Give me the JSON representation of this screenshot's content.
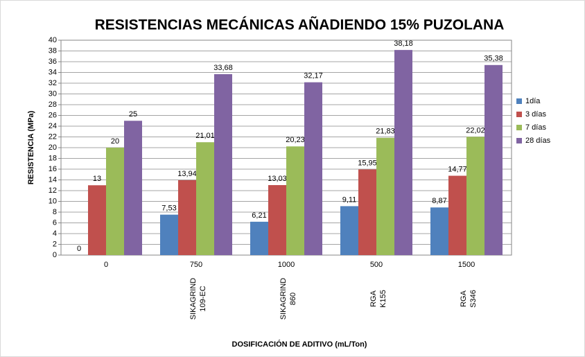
{
  "chart_data": {
    "type": "bar",
    "title": "RESISTENCIAS MECÁNICAS AÑADIENDO 15% PUZOLANA",
    "x_label": "DOSIFICACIÓN DE ADITIVO   (mL/Ton)",
    "y_label": "RESISTENCIA (MPa)",
    "categories": [
      "0",
      "750",
      "1000",
      "500",
      "1500"
    ],
    "sublabels": [
      null,
      [
        "SIKAGRIND",
        "109-EC"
      ],
      [
        "SIKAGRIND",
        "860"
      ],
      [
        "RGA",
        "K155"
      ],
      [
        "RGA",
        "S346"
      ]
    ],
    "series": [
      {
        "name": "1día",
        "color": "#4f81bd",
        "values": [
          0,
          7.53,
          6.21,
          9.11,
          8.87
        ],
        "value_labels": [
          "0",
          "7,53",
          "6,21",
          "9,11",
          "8,87"
        ]
      },
      {
        "name": "3 días",
        "color": "#c0504d",
        "values": [
          13,
          13.94,
          13.03,
          15.95,
          14.77
        ],
        "value_labels": [
          "13",
          "13,94",
          "13,03",
          "15,95",
          "14,77"
        ]
      },
      {
        "name": "7 días",
        "color": "#9bbb59",
        "values": [
          20,
          21.01,
          20.23,
          21.83,
          22.02
        ],
        "value_labels": [
          "20",
          "21,01",
          "20,23",
          "21,83",
          "22,02"
        ]
      },
      {
        "name": "28 días",
        "color": "#8064a2",
        "values": [
          25,
          33.68,
          32.17,
          38.18,
          35.38
        ],
        "value_labels": [
          "25",
          "33,68",
          "32,17",
          "38,18",
          "35,38"
        ]
      }
    ],
    "ylim": [
      0,
      40
    ],
    "yticks": [
      0,
      2,
      4,
      6,
      8,
      10,
      12,
      14,
      16,
      18,
      20,
      22,
      24,
      26,
      28,
      30,
      32,
      34,
      36,
      38,
      40
    ],
    "grid": true,
    "legend": "right"
  }
}
